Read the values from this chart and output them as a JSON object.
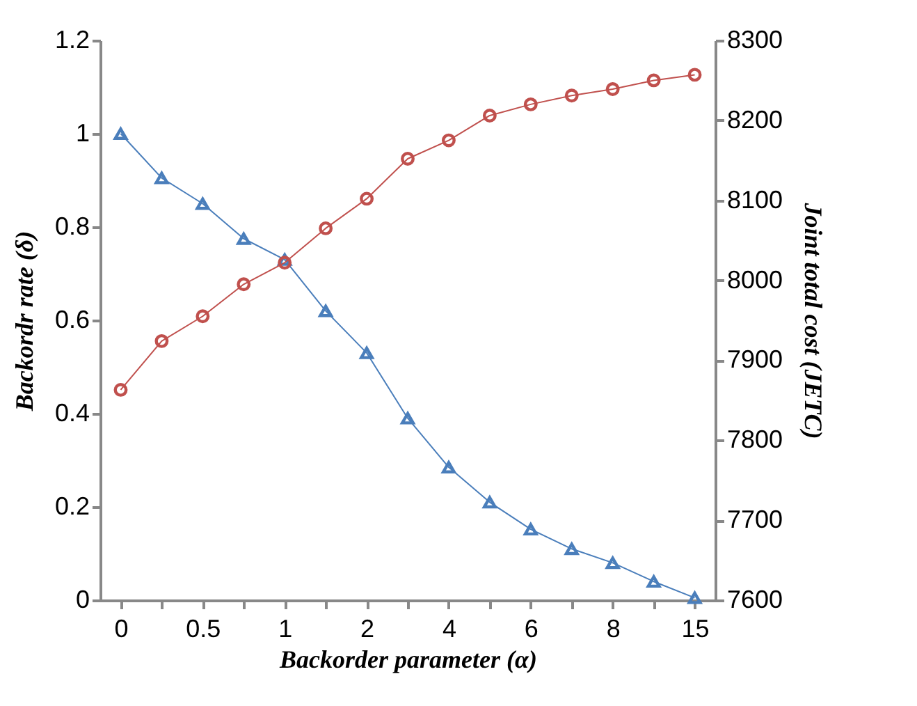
{
  "chart_data": {
    "type": "line",
    "xlabel": "Backorder parameter (α)",
    "ylabel": "Backordr rate (δ)",
    "y2label": "Joint  total cost (JETC)",
    "categories": [
      "0",
      null,
      "0.5",
      null,
      "1",
      null,
      "2",
      null,
      "4",
      null,
      "6",
      null,
      "8",
      null,
      "15"
    ],
    "series": [
      {
        "color": "#4a7ebb",
        "marker": "triangle",
        "values": [
          1.0,
          0.905,
          0.85,
          0.775,
          0.73,
          0.62,
          0.53,
          0.39,
          0.285,
          0.21,
          0.152,
          0.11,
          0.08,
          0.04,
          0.005
        ]
      },
      {
        "axis": "y2",
        "color": "#c0504d",
        "marker": "circle",
        "values": [
          7863,
          7924,
          7955,
          7995,
          8022,
          8065,
          8102,
          8152,
          8175,
          8206,
          8220,
          8231,
          8239,
          8250,
          8257
        ]
      }
    ],
    "ylim": [
      0,
      1.2
    ],
    "yticks": [
      0,
      0.2,
      0.4,
      0.6,
      0.8,
      1,
      1.2
    ],
    "y2lim": [
      7600,
      8300
    ],
    "y2ticks": [
      7600,
      7700,
      7800,
      7900,
      8000,
      8100,
      8200,
      8300
    ],
    "grid": false
  }
}
